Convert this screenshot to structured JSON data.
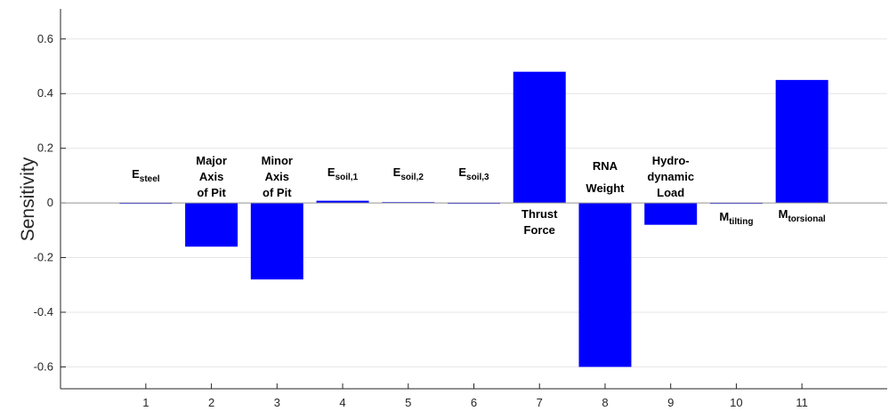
{
  "chart_data": {
    "type": "bar",
    "ylabel": "Sensitivity",
    "x": [
      1,
      2,
      3,
      4,
      5,
      6,
      7,
      8,
      9,
      10,
      11
    ],
    "values": [
      0.0,
      -0.16,
      -0.28,
      0.008,
      0.003,
      0.0,
      0.48,
      -0.6,
      -0.08,
      -0.003,
      0.45
    ],
    "color": "#0000ff",
    "xlim": [
      -0.3,
      12.3
    ],
    "xticks": [
      1,
      2,
      3,
      4,
      5,
      6,
      7,
      8,
      9,
      10,
      11
    ],
    "ylim": [
      -0.68,
      0.71
    ],
    "yticks": [
      -0.6,
      -0.4,
      -0.2,
      0,
      0.2,
      0.4,
      0.6
    ],
    "grid": true,
    "annotations": [
      {
        "text": "E",
        "sub": "steel"
      },
      {
        "lines": [
          "Major",
          "Axis",
          "of Pit"
        ]
      },
      {
        "lines": [
          "Minor",
          "Axis",
          "of Pit"
        ]
      },
      {
        "text": "E",
        "sub": "soil,1"
      },
      {
        "text": "E",
        "sub": "soil,2"
      },
      {
        "text": "E",
        "sub": "soil,3"
      },
      {
        "lines": [
          "Thrust",
          "Force"
        ]
      },
      {
        "lines": [
          "RNA",
          "Weight"
        ]
      },
      {
        "lines": [
          "Hydro-",
          "dynamic",
          "Load"
        ]
      },
      {
        "text": "M",
        "sub": "tilting"
      },
      {
        "text": "M",
        "sub": "torsional"
      }
    ]
  }
}
